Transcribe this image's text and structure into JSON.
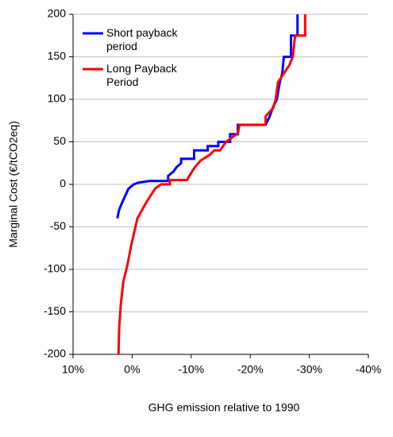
{
  "chart_data": {
    "type": "line",
    "x_label": "GHG emission relative to 1990",
    "y_label": "Marginal Cost (€/tCO2eq)",
    "xlim": [
      10,
      -40
    ],
    "xticks": [
      {
        "value": 10,
        "label": "10%"
      },
      {
        "value": 0,
        "label": "0%"
      },
      {
        "value": -10,
        "label": "-10%"
      },
      {
        "value": -20,
        "label": "-20%"
      },
      {
        "value": -30,
        "label": "-30%"
      },
      {
        "value": -40,
        "label": "-40%"
      }
    ],
    "ylim": [
      -200,
      200
    ],
    "yticks": [
      -200,
      -150,
      -100,
      -50,
      0,
      50,
      100,
      150,
      200
    ],
    "grid": true,
    "legend": "upper left",
    "series": [
      {
        "name": "Short payback period",
        "color": "#0000ff",
        "x": [
          2.5,
          2.2,
          1.6,
          0.6,
          -0.3,
          -1.1,
          -2.9,
          -6.1,
          -6.1,
          -7.0,
          -7.5,
          -8.3,
          -8.3,
          -10.5,
          -10.5,
          -12.8,
          -12.8,
          -14.6,
          -14.6,
          -16.6,
          -16.6,
          -17.9,
          -17.9,
          -22.6,
          -23.3,
          -23.8,
          -24.5,
          -25.0,
          -25.4,
          -25.7,
          -26.9,
          -26.9,
          -28.0,
          -28.0
        ],
        "y": [
          -40,
          -30,
          -20,
          -5,
          0,
          2,
          4,
          4,
          10,
          15,
          20,
          25,
          30,
          30,
          40,
          40,
          45,
          45,
          50,
          50,
          59,
          59,
          70,
          70,
          80,
          90,
          100,
          120,
          130,
          150,
          150,
          175,
          175,
          200
        ]
      },
      {
        "name": "Long Payback Period",
        "color": "#ff0000",
        "x": [
          2.3,
          2.2,
          1.9,
          1.5,
          0.8,
          0.1,
          -0.9,
          -2.5,
          -3.9,
          -4.9,
          -6.4,
          -6.4,
          -9.3,
          -9.7,
          -10.6,
          -11.6,
          -11.6,
          -13.2,
          -13.9,
          -14.9,
          -15.9,
          -17.9,
          -18.2,
          -22.6,
          -22.6,
          -23.9,
          -24.3,
          -24.7,
          -26.6,
          -27.2,
          -27.6,
          -28.2,
          -29.3,
          -29.3
        ],
        "y": [
          -200,
          -170,
          -140,
          -115,
          -95,
          -70,
          -40,
          -20,
          -5,
          0,
          0,
          5,
          5,
          10,
          20,
          28,
          28,
          35,
          40,
          40,
          50,
          60,
          70,
          70,
          80,
          90,
          100,
          120,
          140,
          150,
          175,
          175,
          175,
          200
        ]
      }
    ]
  }
}
